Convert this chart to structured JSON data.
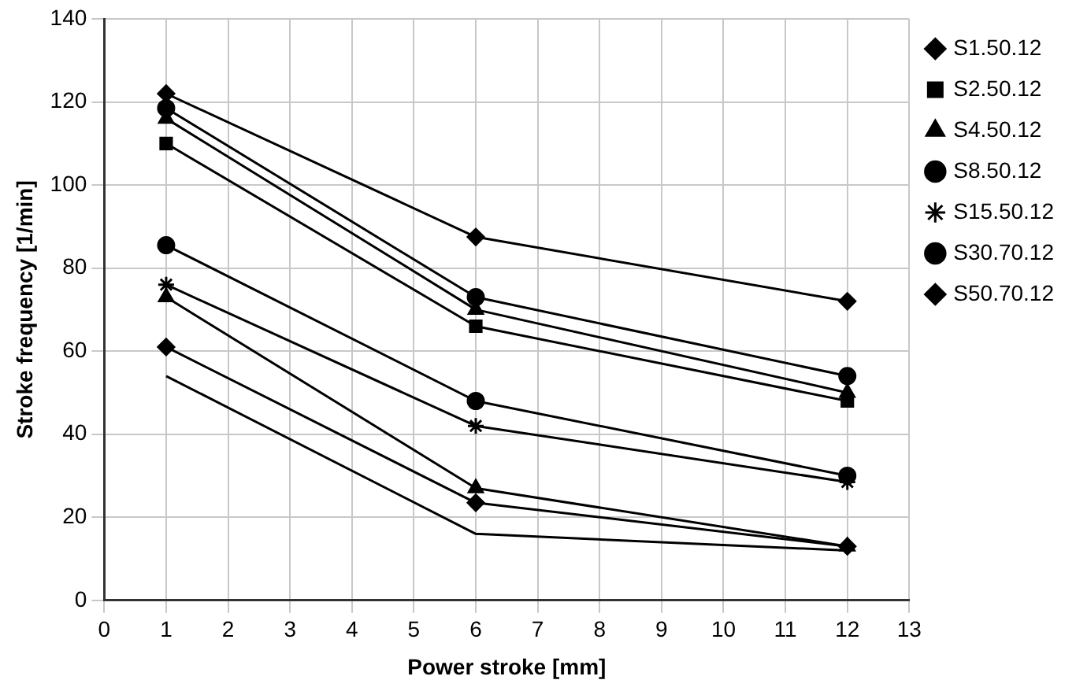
{
  "chart_data": {
    "type": "line",
    "xlabel": "Power stroke [mm]",
    "ylabel": "Stroke frequency [1/min]",
    "x": [
      1,
      6,
      12
    ],
    "xlim": [
      0,
      13
    ],
    "xticks": [
      0,
      1,
      2,
      3,
      4,
      5,
      6,
      7,
      8,
      9,
      10,
      11,
      12,
      13
    ],
    "ylim": [
      0,
      140
    ],
    "yticks": [
      0,
      20,
      40,
      60,
      80,
      100,
      120,
      140
    ],
    "grid": true,
    "legend": "right",
    "line_style": "solid",
    "series": [
      {
        "name": "S1.50.12",
        "color": "#000000",
        "marker": "diamond",
        "values": [
          122,
          87.5,
          72
        ]
      },
      {
        "name": "S2.50.12",
        "color": "#000000",
        "marker": "square",
        "values": [
          110,
          66,
          48
        ]
      },
      {
        "name": "S4.50.12",
        "color": "#000000",
        "marker": "triangle",
        "values": [
          116,
          70,
          50
        ]
      },
      {
        "name": "S8.50.12",
        "color": "#000000",
        "marker": "circle",
        "values": [
          118.5,
          73,
          54
        ]
      },
      {
        "name": "S15.50.12",
        "color": "#000000",
        "marker": "cross",
        "values": [
          76,
          42,
          28.5
        ]
      },
      {
        "name": "S30.70.12",
        "color": "#000000",
        "marker": "circle",
        "values": [
          85.5,
          48,
          30
        ]
      },
      {
        "name": "S50.70.12",
        "color": "#000000",
        "marker": "diamond",
        "values": [
          61,
          23.5,
          13
        ]
      },
      {
        "color": "#000000",
        "marker": "triangle",
        "values": [
          73,
          27,
          13
        ]
      },
      {
        "color": "#000000",
        "marker": "none",
        "values": [
          54,
          16,
          12
        ]
      }
    ]
  }
}
